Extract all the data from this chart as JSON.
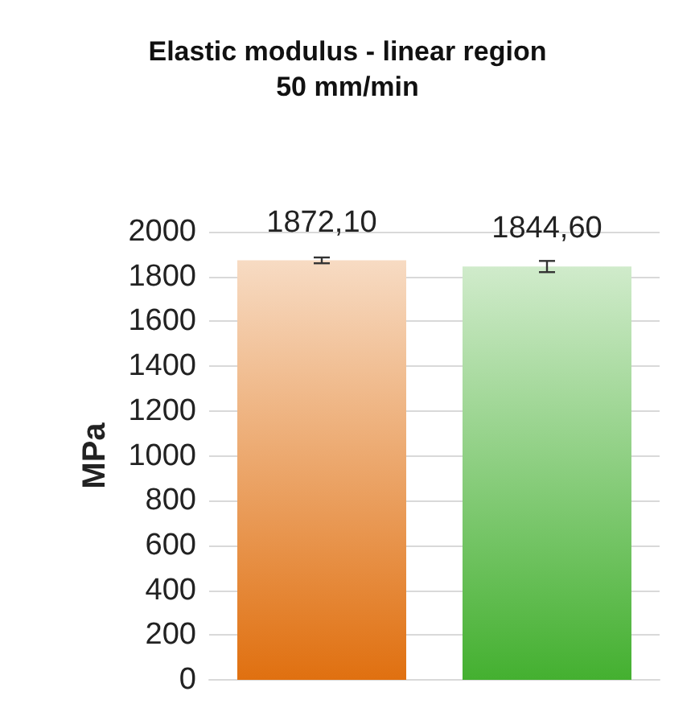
{
  "chart_data": {
    "type": "bar",
    "title": "Elastic modulus - linear region\n50 mm/min",
    "ylabel": "MPa",
    "categories": [
      null,
      null
    ],
    "values": [
      1872.1,
      1844.6
    ],
    "value_labels": [
      "1872,10",
      "1844,60"
    ],
    "errors": [
      13,
      25
    ],
    "colors": [
      "#e07010",
      "#44b030"
    ],
    "ylim": [
      0,
      2000
    ],
    "yticks": [
      0,
      200,
      400,
      600,
      800,
      1000,
      1200,
      1400,
      1600,
      1800,
      2000
    ],
    "grid": "y"
  }
}
